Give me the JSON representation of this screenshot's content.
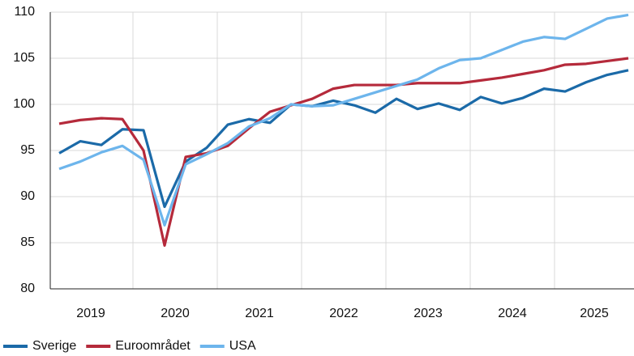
{
  "chart_data": {
    "type": "line",
    "categories": [
      "2019",
      null,
      null,
      null,
      "2020",
      null,
      null,
      null,
      "2021",
      null,
      null,
      null,
      "2022",
      null,
      null,
      null,
      "2023",
      null,
      null,
      null,
      "2024",
      null,
      null,
      null,
      "2025",
      null,
      null,
      null
    ],
    "series": [
      {
        "name": "Sverige",
        "color": "#1b6aa8",
        "values": [
          94.7,
          96.0,
          95.6,
          97.3,
          97.2,
          88.9,
          93.8,
          95.3,
          97.8,
          98.4,
          98.0,
          100.0,
          99.8,
          100.4,
          99.9,
          99.1,
          100.6,
          99.5,
          100.1,
          99.4,
          100.8,
          100.1,
          100.7,
          101.7,
          101.4,
          102.4,
          103.2,
          103.7
        ]
      },
      {
        "name": "Euroområdet",
        "color": "#b52a3b",
        "values": [
          97.9,
          98.3,
          98.5,
          98.4,
          95.0,
          84.7,
          94.3,
          94.7,
          95.5,
          97.4,
          99.2,
          99.9,
          100.6,
          101.7,
          102.1,
          102.1,
          102.1,
          102.3,
          102.3,
          102.3,
          102.6,
          102.9,
          103.3,
          103.7,
          104.3,
          104.4,
          104.7,
          105.0
        ]
      },
      {
        "name": "USA",
        "color": "#6db5ec",
        "values": [
          93.0,
          93.8,
          94.8,
          95.5,
          94.0,
          86.9,
          93.5,
          94.6,
          95.8,
          97.6,
          98.5,
          100.0,
          99.8,
          99.9,
          100.6,
          101.3,
          102.0,
          102.7,
          103.9,
          104.8,
          105.0,
          105.9,
          106.8,
          107.3,
          107.1,
          108.2,
          109.3,
          109.7
        ]
      }
    ],
    "ylim": [
      80,
      110
    ],
    "yticks": [
      80,
      85,
      90,
      95,
      100,
      105,
      110
    ],
    "grid": true,
    "legend": "bottom"
  }
}
